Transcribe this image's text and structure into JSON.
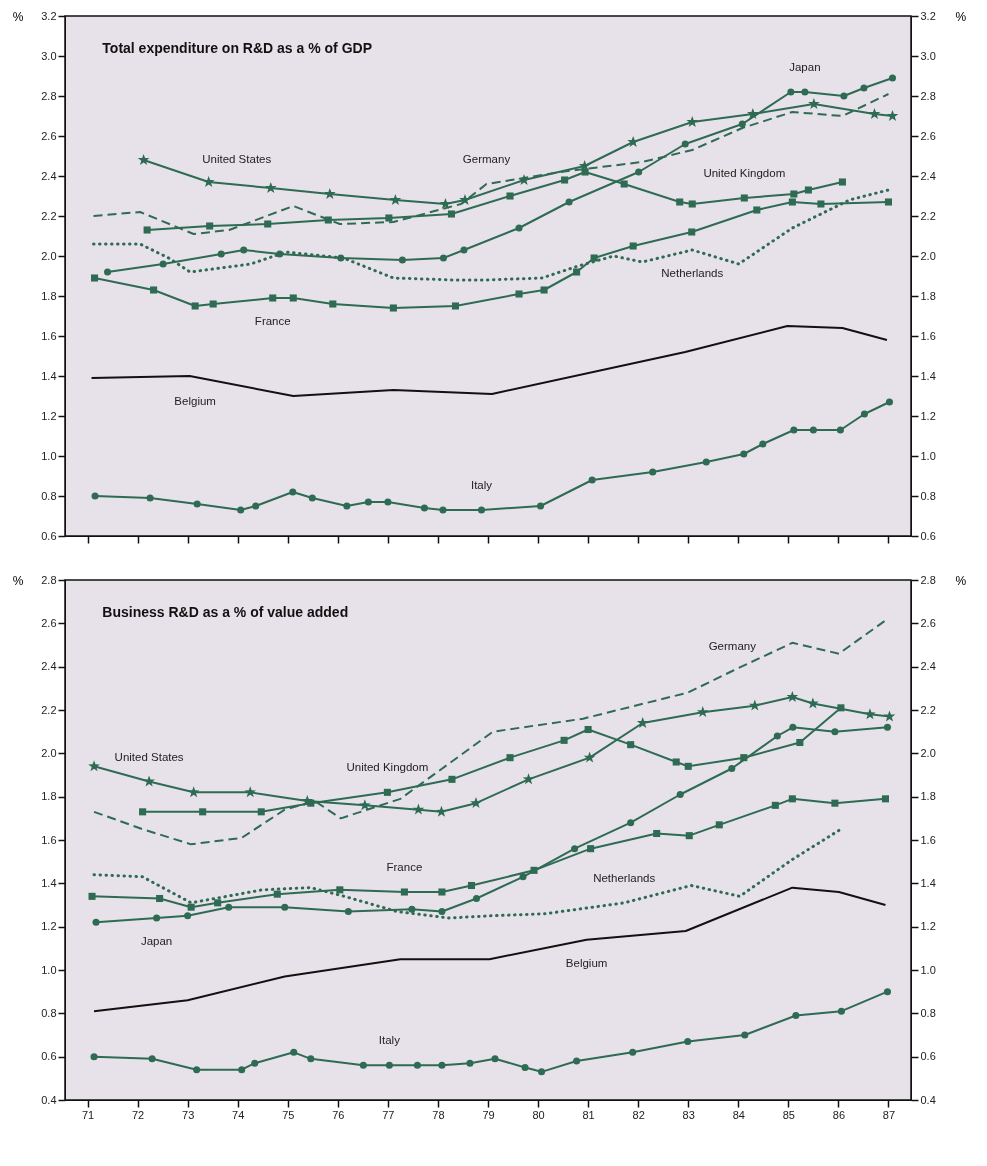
{
  "chart_data": [
    {
      "type": "line",
      "title": "Total expenditure on R&D as a % of GDP",
      "ylabel": "%",
      "y2label": "%",
      "xlim": [
        70.55,
        87.45
      ],
      "xticks": [
        71,
        72,
        73,
        74,
        75,
        76,
        77,
        78,
        79,
        80,
        81,
        82,
        83,
        84,
        85,
        86,
        87
      ],
      "ylim": [
        0.6,
        3.2
      ],
      "yticks": [
        0.6,
        0.8,
        {
          "value": 1,
          "label": "1.0"
        },
        1.2,
        1.4,
        1.6,
        1.8,
        {
          "value": 2,
          "label": "2.0"
        },
        2.2,
        2.4,
        2.6,
        2.8,
        {
          "value": 3,
          "label": "3.0"
        },
        3.2
      ],
      "y2lim": [
        0.6,
        3.2
      ],
      "y2ticks": [
        0.6,
        0.8,
        {
          "value": 1,
          "label": "1.0"
        },
        1.2,
        1.4,
        1.6,
        1.8,
        {
          "value": 2,
          "label": "2.0"
        },
        2.2,
        2.4,
        2.6,
        2.8,
        {
          "value": 3,
          "label": "3.0"
        },
        3.2
      ],
      "tick_labels": "y",
      "series": [
        {
          "color": "#2e6b52",
          "marker": "star",
          "line_style": "solid",
          "x": [
            72.12,
            73.42,
            74.66,
            75.84,
            77.15,
            78.15,
            78.54,
            79.72,
            80.93,
            81.9,
            83.08,
            84.29,
            85.51,
            86.72,
            87.08
          ],
          "values": [
            2.48,
            2.37,
            2.34,
            2.31,
            2.28,
            2.26,
            2.28,
            2.38,
            2.45,
            2.57,
            2.67,
            2.71,
            2.76,
            2.71,
            2.7
          ]
        },
        {
          "color": "#2e6b52",
          "marker": "circle",
          "line_style": "solid",
          "x": [
            71.4,
            72.51,
            73.67,
            74.12,
            74.84,
            76.06,
            77.29,
            78.11,
            78.52,
            79.62,
            80.62,
            82.01,
            82.94,
            84.08,
            85.05,
            85.33,
            86.11,
            86.51,
            87.08
          ],
          "values": [
            1.92,
            1.96,
            2.01,
            2.03,
            2.01,
            1.99,
            1.98,
            1.99,
            2.03,
            2.14,
            2.27,
            2.42,
            2.56,
            2.66,
            2.82,
            2.82,
            2.8,
            2.84,
            2.89
          ]
        },
        {
          "color": "#2e6b52",
          "marker": "square",
          "line_style": "solid",
          "x": [
            72.19,
            73.44,
            74.6,
            75.81,
            77.02,
            78.27,
            79.44,
            80.53,
            80.94,
            81.72,
            82.83,
            83.08,
            84.12,
            85.11,
            85.4,
            86.08
          ],
          "values": [
            2.13,
            2.15,
            2.16,
            2.18,
            2.19,
            2.21,
            2.3,
            2.38,
            2.42,
            2.36,
            2.27,
            2.26,
            2.29,
            2.31,
            2.33,
            2.37
          ]
        },
        {
          "color": "#2e6b52",
          "marker": "none",
          "line_style": "dashed",
          "x": [
            71.12,
            72.05,
            73.12,
            73.83,
            75.11,
            76.04,
            77.11,
            78.46,
            78.97,
            80.44,
            82.08,
            83.08,
            84.08,
            85.08,
            86.08,
            87.0
          ],
          "values": [
            2.2,
            2.22,
            2.11,
            2.13,
            2.25,
            2.16,
            2.17,
            2.26,
            2.36,
            2.42,
            2.47,
            2.53,
            2.64,
            2.72,
            2.7,
            2.81
          ]
        },
        {
          "color": "#2e6b52",
          "marker": "none",
          "line_style": "dotted",
          "x": [
            71.12,
            72.05,
            72.62,
            73.05,
            74.26,
            74.97,
            76.11,
            77.11,
            78.32,
            78.97,
            80.08,
            80.8,
            81.51,
            82.08,
            83.08,
            84.01,
            85.08,
            86.22,
            87.0
          ],
          "values": [
            2.06,
            2.06,
            1.99,
            1.92,
            1.96,
            2.02,
            1.99,
            1.89,
            1.88,
            1.88,
            1.89,
            1.95,
            2.0,
            1.97,
            2.03,
            1.96,
            2.14,
            2.28,
            2.33
          ]
        },
        {
          "color": "#2e6b52",
          "marker": "square",
          "line_style": "solid",
          "x": [
            71.14,
            72.32,
            73.15,
            73.51,
            74.7,
            75.11,
            75.9,
            77.11,
            78.35,
            79.62,
            80.12,
            80.77,
            81.12,
            81.9,
            83.07,
            84.37,
            85.08,
            85.65,
            87.0
          ],
          "values": [
            1.89,
            1.83,
            1.75,
            1.76,
            1.79,
            1.79,
            1.76,
            1.74,
            1.75,
            1.81,
            1.83,
            1.92,
            1.99,
            2.05,
            2.12,
            2.23,
            2.27,
            2.26,
            2.27
          ]
        },
        {
          "color": "#111111",
          "marker": "none",
          "line_style": "solid",
          "x": [
            71.08,
            73.04,
            75.11,
            77.11,
            79.08,
            82.94,
            84.98,
            86.08,
            86.97
          ],
          "values": [
            1.39,
            1.4,
            1.3,
            1.33,
            1.31,
            1.52,
            1.65,
            1.64,
            1.58
          ]
        },
        {
          "color": "#2e6b52",
          "marker": "circle",
          "line_style": "solid",
          "x": [
            71.15,
            72.25,
            73.19,
            74.06,
            74.36,
            75.1,
            75.49,
            76.18,
            76.61,
            77.0,
            77.73,
            78.1,
            78.87,
            80.05,
            81.08,
            82.29,
            83.36,
            84.11,
            84.49,
            85.11,
            85.5,
            86.04,
            86.52,
            87.02
          ],
          "values": [
            0.8,
            0.79,
            0.76,
            0.73,
            0.75,
            0.82,
            0.79,
            0.75,
            0.77,
            0.77,
            0.74,
            0.73,
            0.73,
            0.75,
            0.88,
            0.92,
            0.97,
            1.01,
            1.06,
            1.13,
            1.13,
            1.13,
            1.21,
            1.27
          ]
        }
      ],
      "annotations": [
        {
          "text": "United States",
          "x": 73.98,
          "y": 2.36
        },
        {
          "text": "Germany",
          "x": 78.97,
          "y": 2.36
        },
        {
          "text": "France",
          "x": 74.7,
          "y": 1.79
        },
        {
          "text": "Belgium",
          "x": 73.15,
          "y": 1.39
        },
        {
          "text": "Italy",
          "x": 78.87,
          "y": 0.73
        },
        {
          "text": "Japan",
          "x": 85.33,
          "y": 2.82
        },
        {
          "text": "United Kingdom",
          "x": 84.12,
          "y": 2.29
        },
        {
          "text": "Netherlands",
          "x": 83.08,
          "y": 2.03
        }
      ]
    },
    {
      "type": "line",
      "title": "Business R&D as a % of value added",
      "ylabel": "%",
      "y2label": "%",
      "xlim": [
        70.55,
        87.45
      ],
      "xticks": [
        71,
        72,
        73,
        74,
        75,
        76,
        77,
        78,
        79,
        80,
        81,
        82,
        83,
        84,
        85,
        86,
        87
      ],
      "ylim": [
        0.4,
        2.8
      ],
      "yticks": [
        0.4,
        0.6,
        0.8,
        {
          "value": 1,
          "label": "1.0"
        },
        1.2,
        1.4,
        1.6,
        1.8,
        {
          "value": 2,
          "label": "2.0"
        },
        2.2,
        2.4,
        2.6,
        2.8
      ],
      "y2lim": [
        0.4,
        2.8
      ],
      "y2ticks": [
        0.4,
        0.6,
        0.8,
        {
          "value": 1,
          "label": "1.0"
        },
        1.2,
        1.4,
        1.6,
        1.8,
        {
          "value": 2,
          "label": "2.0"
        },
        2.2,
        2.4,
        2.6,
        2.8
      ],
      "series": [
        {
          "color": "#2e6b52",
          "marker": "star",
          "line_style": "solid",
          "x": [
            71.13,
            72.23,
            73.12,
            74.25,
            75.39,
            76.54,
            77.61,
            78.07,
            78.76,
            79.81,
            81.03,
            82.09,
            83.29,
            84.33,
            85.08,
            85.49,
            86.63,
            87.02
          ],
          "values": [
            1.94,
            1.87,
            1.82,
            1.82,
            1.78,
            1.76,
            1.74,
            1.73,
            1.77,
            1.88,
            1.98,
            2.14,
            2.19,
            2.22,
            2.26,
            2.23,
            2.18,
            2.17
          ]
        },
        {
          "color": "#2e6b52",
          "marker": "circle",
          "line_style": "solid",
          "x": [
            71.17,
            72.38,
            73.0,
            73.82,
            74.94,
            76.21,
            77.48,
            78.08,
            78.77,
            79.7,
            80.73,
            81.85,
            82.84,
            83.87,
            84.78,
            85.09,
            85.93,
            86.98
          ],
          "values": [
            1.22,
            1.24,
            1.25,
            1.29,
            1.29,
            1.27,
            1.28,
            1.27,
            1.33,
            1.43,
            1.56,
            1.68,
            1.81,
            1.93,
            2.08,
            2.12,
            2.1,
            2.12
          ]
        },
        {
          "color": "#2e6b52",
          "marker": "square",
          "line_style": "solid",
          "x": [
            72.1,
            73.3,
            74.47,
            75.46,
            76.99,
            78.28,
            79.44,
            80.52,
            81.0,
            81.85,
            82.76,
            83.0,
            84.11,
            85.23,
            86.05
          ],
          "values": [
            1.73,
            1.73,
            1.73,
            1.77,
            1.82,
            1.88,
            1.98,
            2.06,
            2.11,
            2.04,
            1.96,
            1.94,
            1.98,
            2.05,
            2.21
          ]
        },
        {
          "color": "#2e6b52",
          "marker": "none",
          "line_style": "dashed",
          "x": [
            71.13,
            72.1,
            73.07,
            74.08,
            74.94,
            75.54,
            76.06,
            77.25,
            79.1,
            80.9,
            82.99,
            83.88,
            85.08,
            86.01,
            86.98
          ],
          "values": [
            1.73,
            1.65,
            1.58,
            1.61,
            1.74,
            1.78,
            1.7,
            1.79,
            2.1,
            2.16,
            2.28,
            2.38,
            2.51,
            2.46,
            2.62
          ]
        },
        {
          "color": "#2e6b52",
          "marker": "none",
          "line_style": "dotted",
          "x": [
            71.13,
            72.1,
            73.07,
            74.49,
            75.46,
            76.13,
            77.18,
            78.22,
            79.05,
            80.15,
            81.72,
            83.06,
            84.03,
            85.08,
            86.05
          ],
          "values": [
            1.44,
            1.43,
            1.31,
            1.37,
            1.38,
            1.34,
            1.27,
            1.24,
            1.25,
            1.26,
            1.31,
            1.39,
            1.34,
            1.51,
            1.65
          ]
        },
        {
          "color": "#2e6b52",
          "marker": "square",
          "line_style": "solid",
          "x": [
            71.09,
            72.44,
            73.07,
            73.6,
            74.79,
            76.04,
            77.33,
            78.08,
            78.67,
            79.92,
            81.05,
            82.37,
            83.02,
            83.62,
            84.74,
            85.08,
            85.93,
            86.94
          ],
          "values": [
            1.34,
            1.33,
            1.29,
            1.31,
            1.35,
            1.37,
            1.36,
            1.36,
            1.39,
            1.46,
            1.56,
            1.63,
            1.62,
            1.67,
            1.76,
            1.79,
            1.77,
            1.79
          ]
        },
        {
          "color": "#111111",
          "marker": "none",
          "line_style": "solid",
          "x": [
            71.13,
            73.0,
            74.94,
            77.25,
            79.03,
            80.97,
            82.95,
            85.08,
            86.01,
            86.94
          ],
          "values": [
            0.81,
            0.86,
            0.97,
            1.05,
            1.05,
            1.14,
            1.18,
            1.38,
            1.36,
            1.3
          ]
        },
        {
          "color": "#2e6b52",
          "marker": "circle",
          "line_style": "solid",
          "x": [
            71.13,
            72.29,
            73.18,
            74.08,
            74.34,
            75.12,
            75.46,
            76.51,
            77.03,
            77.59,
            78.08,
            78.64,
            79.14,
            79.74,
            80.07,
            80.77,
            81.89,
            82.99,
            84.13,
            85.15,
            86.06,
            86.98
          ],
          "values": [
            0.6,
            0.59,
            0.54,
            0.54,
            0.57,
            0.62,
            0.59,
            0.56,
            0.56,
            0.56,
            0.56,
            0.57,
            0.59,
            0.55,
            0.53,
            0.58,
            0.62,
            0.67,
            0.7,
            0.79,
            0.81,
            0.9
          ]
        }
      ],
      "annotations": [
        {
          "text": "United States",
          "x": 72.23,
          "y": 1.87
        },
        {
          "text": "United Kingdom",
          "x": 76.99,
          "y": 1.82
        },
        {
          "text": "France",
          "x": 77.33,
          "y": 1.36
        },
        {
          "text": "Japan",
          "x": 72.38,
          "y": 1.24
        },
        {
          "text": "Italy",
          "x": 77.03,
          "y": 0.56
        },
        {
          "text": "Germany",
          "x": 83.88,
          "y": 2.38
        },
        {
          "text": "Netherlands",
          "x": 81.72,
          "y": 1.31
        },
        {
          "text": "Belgium",
          "x": 80.97,
          "y": 1.14
        }
      ]
    }
  ]
}
